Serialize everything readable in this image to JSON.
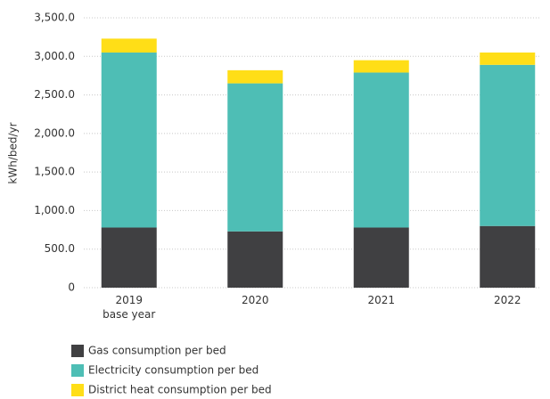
{
  "chart_data": {
    "type": "stacked_bar",
    "y_label": "kWh/bed/yr",
    "categories": [
      "2019\nbase year",
      "2020",
      "2021",
      "2022"
    ],
    "series": [
      {
        "name": "Gas consumption per bed",
        "color": "#404042",
        "values": [
          780,
          730,
          780,
          800
        ]
      },
      {
        "name": "Electricity consumption per bed",
        "color": "#4ebeb5",
        "values": [
          2270,
          1920,
          2010,
          2090
        ]
      },
      {
        "name": "District heat consumption per bed",
        "color": "#ffde17",
        "values": [
          180,
          170,
          160,
          160
        ]
      }
    ],
    "ylim": [
      0,
      3500
    ],
    "yticks": [
      0,
      {
        "value": 500,
        "label": "500.0"
      },
      {
        "value": 1000,
        "label": "1,000.0"
      },
      {
        "value": 1500,
        "label": "1,500.0"
      },
      {
        "value": 2000,
        "label": "2,000.0"
      },
      {
        "value": 2500,
        "label": "2,500.0"
      },
      {
        "value": 3000,
        "label": "3,000.0"
      },
      {
        "value": 3500,
        "label": "3,500.0"
      }
    ],
    "grid": true
  }
}
